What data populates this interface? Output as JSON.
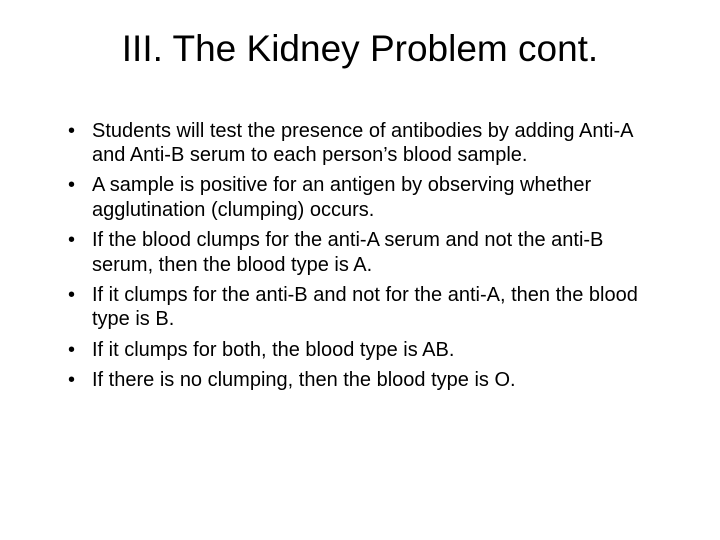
{
  "slide": {
    "title": "III. The Kidney Problem cont.",
    "title_fontsize": 37,
    "title_color": "#000000",
    "background_color": "#ffffff",
    "bullet_fontsize": 20,
    "bullet_color": "#000000",
    "bullets": [
      "Students will test the presence of antibodies by adding Anti-A and Anti-B serum to each person’s blood sample.",
      "A sample is positive for an antigen by observing whether agglutination (clumping) occurs.",
      "If the blood clumps for the anti-A serum and not the anti-B serum, then the blood type is A.",
      "If it clumps for the anti-B and not for the anti-A, then the blood type is B.",
      "If it clumps for both, the blood type is AB.",
      "If there is no clumping, then the blood type is O."
    ]
  }
}
